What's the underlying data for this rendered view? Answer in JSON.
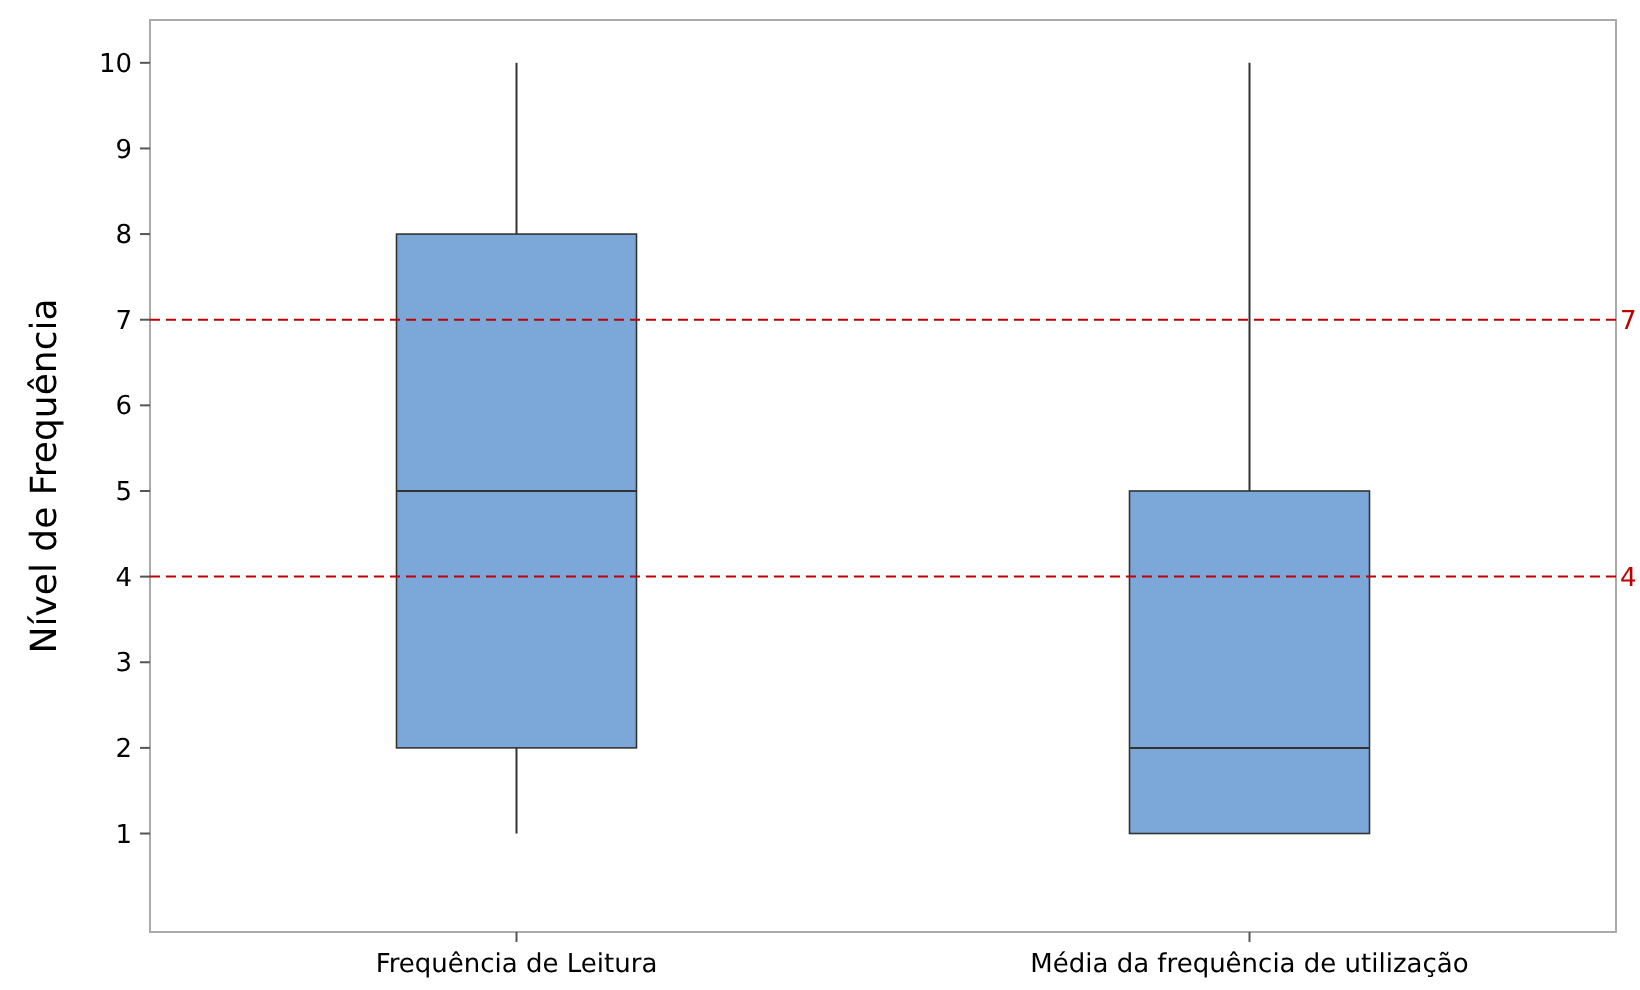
{
  "chart_data": {
    "type": "box",
    "ylabel": "Nível de Frequência",
    "categories": [
      "Frequência de Leitura",
      "Média da frequência de utilização"
    ],
    "color": "#7ba7d9",
    "boxes": [
      {
        "low": 1,
        "q1": 2,
        "median": 5,
        "q3": 8,
        "high": 10
      },
      {
        "low": 1,
        "q1": 1,
        "median": 2,
        "q3": 5,
        "high": 10
      }
    ],
    "ylim": [
      -0.15,
      10.5
    ],
    "yticks": [
      1,
      2,
      3,
      4,
      5,
      6,
      7,
      8,
      9,
      10
    ],
    "grid": false,
    "ref_lines": [
      {
        "axis": "y",
        "value": 7,
        "label": "7",
        "color": "#c00000",
        "line_style": "dashed"
      },
      {
        "axis": "y",
        "value": 4,
        "label": "4",
        "color": "#c00000",
        "line_style": "dashed"
      }
    ]
  }
}
